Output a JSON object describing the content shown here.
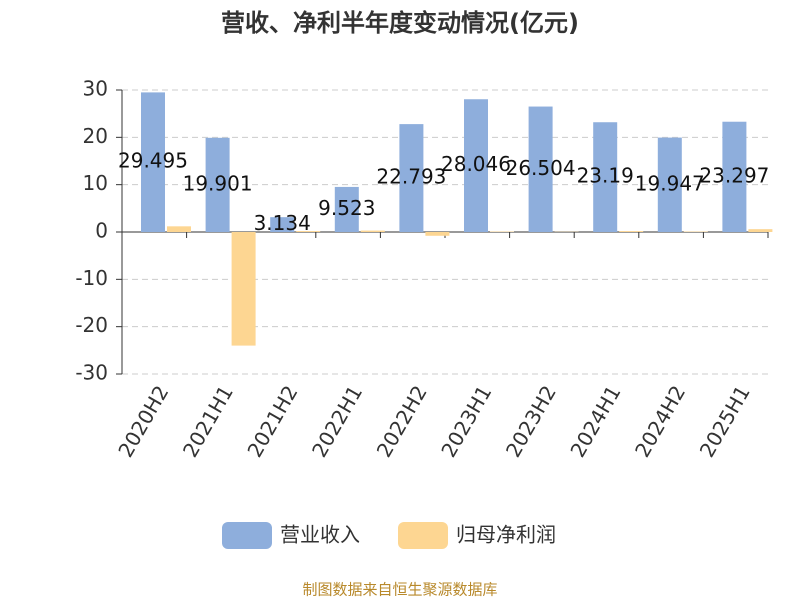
{
  "chart_data": {
    "type": "bar",
    "title": "营收、净利半年度变动情况(亿元)",
    "categories": [
      "2020H2",
      "2021H1",
      "2021H2",
      "2022H1",
      "2022H2",
      "2023H1",
      "2023H2",
      "2024H1",
      "2024H2",
      "2025H1"
    ],
    "series": [
      {
        "name": "营业收入",
        "color": "#8eaedc",
        "values": [
          29.495,
          19.901,
          3.134,
          9.523,
          22.793,
          28.046,
          26.504,
          23.19,
          19.947,
          23.297
        ]
      },
      {
        "name": "归母净利润",
        "color": "#fdd692",
        "values": [
          1.2,
          -24,
          0.2,
          0.3,
          -0.8,
          0.1,
          0.05,
          0.2,
          0.1,
          0.6
        ]
      }
    ],
    "ylim": [
      -30,
      30
    ],
    "yticks": [
      -30,
      -20,
      -10,
      0,
      10,
      20,
      30
    ],
    "grid": true,
    "source": "制图数据来自恒生聚源数据库"
  }
}
